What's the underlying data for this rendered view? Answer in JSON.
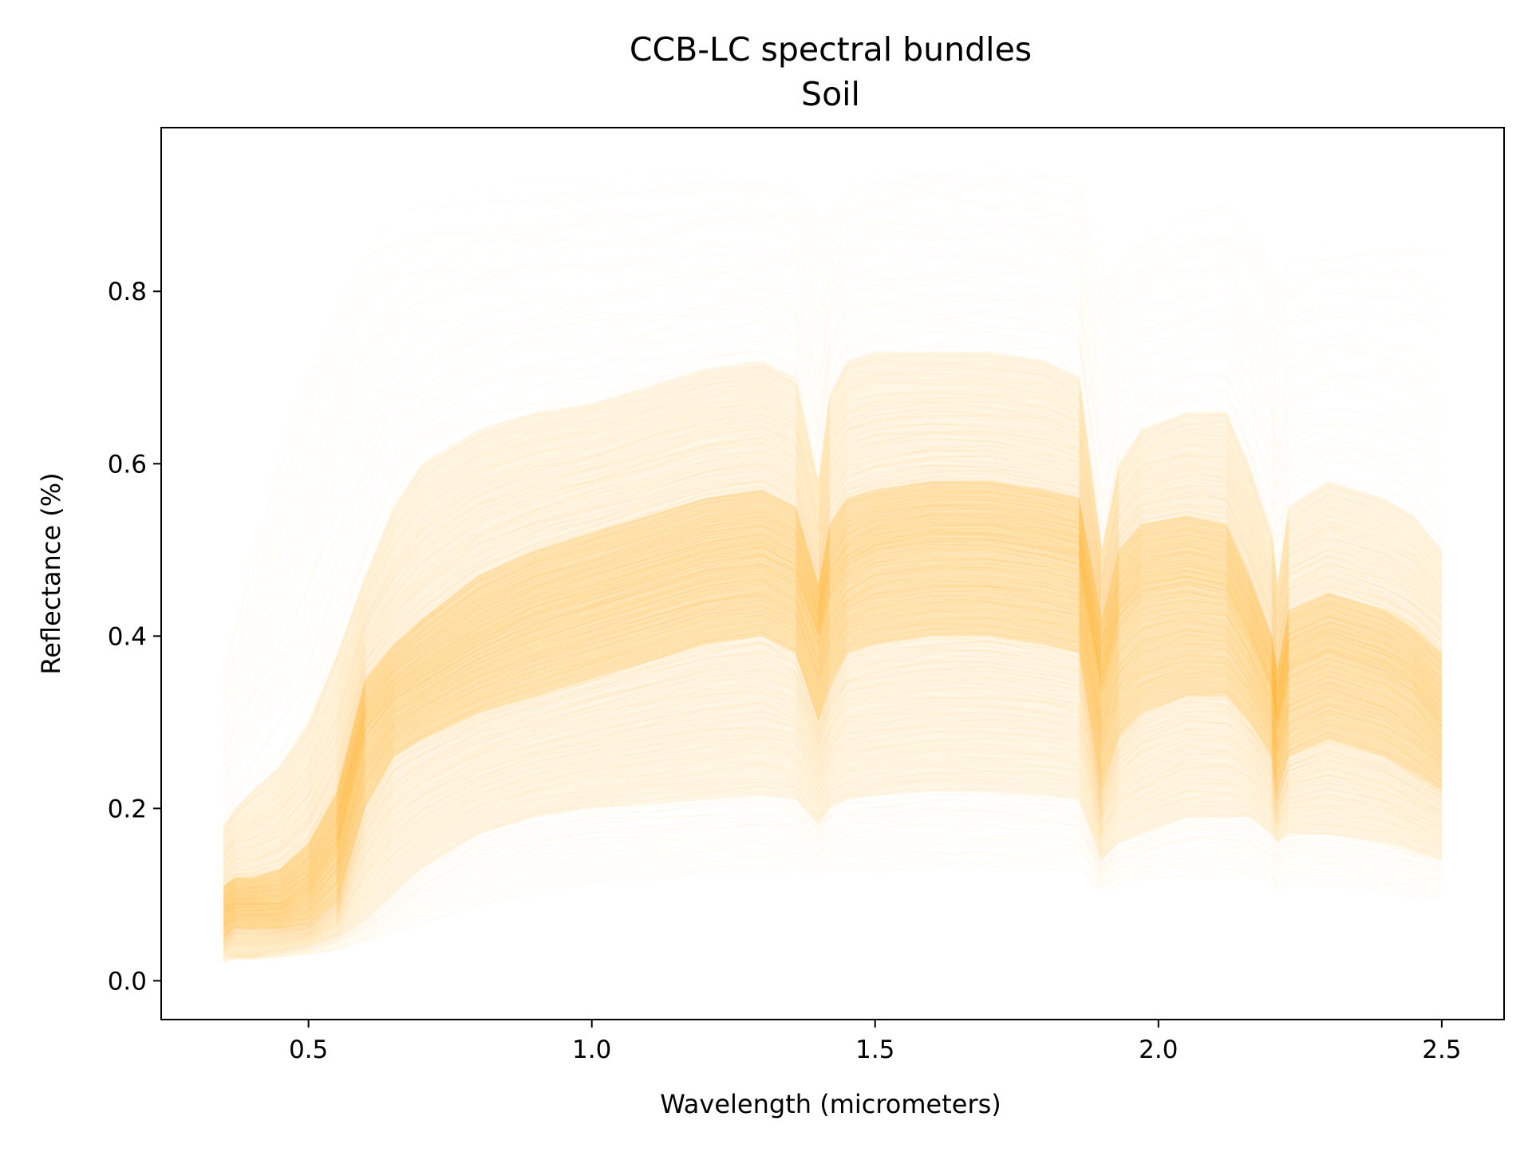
{
  "chart_data": {
    "type": "line",
    "title": "CCB-LC spectral bundles",
    "subtitle": "Soil",
    "xlabel": "Wavelength (micrometers)",
    "ylabel": "Reflectance (%)",
    "xlim": [
      0.24,
      2.61
    ],
    "ylim": [
      -0.045,
      0.99
    ],
    "xticks": [
      {
        "value": 0.5,
        "label": "0.5"
      },
      {
        "value": 1.0,
        "label": "1.0"
      },
      {
        "value": 1.5,
        "label": "1.5"
      },
      {
        "value": 2.0,
        "label": "2.0"
      },
      {
        "value": 2.5,
        "label": "2.5"
      }
    ],
    "yticks": [
      {
        "value": 0.0,
        "label": "0.0"
      },
      {
        "value": 0.2,
        "label": "0.2"
      },
      {
        "value": 0.4,
        "label": "0.4"
      },
      {
        "value": 0.6,
        "label": "0.6"
      },
      {
        "value": 0.8,
        "label": "0.8"
      }
    ],
    "grid": false,
    "legend": "none",
    "series_color": "#ffa500",
    "x": [
      0.35,
      0.37,
      0.4,
      0.45,
      0.5,
      0.55,
      0.6,
      0.65,
      0.7,
      0.8,
      0.9,
      1.0,
      1.1,
      1.2,
      1.3,
      1.36,
      1.4,
      1.42,
      1.45,
      1.5,
      1.6,
      1.7,
      1.8,
      1.86,
      1.9,
      1.93,
      1.97,
      2.05,
      2.12,
      2.16,
      2.2,
      2.21,
      2.23,
      2.3,
      2.4,
      2.45,
      2.5
    ],
    "bundle_bands": {
      "min": [
        0.02,
        0.025,
        0.025,
        0.027,
        0.03,
        0.035,
        0.045,
        0.055,
        0.065,
        0.085,
        0.1,
        0.11,
        0.115,
        0.12,
        0.125,
        0.125,
        0.12,
        0.12,
        0.125,
        0.128,
        0.13,
        0.13,
        0.13,
        0.128,
        0.1,
        0.11,
        0.115,
        0.12,
        0.12,
        0.12,
        0.11,
        0.1,
        0.11,
        0.11,
        0.1,
        0.095,
        0.095
      ],
      "p10": [
        0.03,
        0.03,
        0.03,
        0.035,
        0.04,
        0.05,
        0.07,
        0.1,
        0.13,
        0.17,
        0.19,
        0.2,
        0.205,
        0.21,
        0.215,
        0.21,
        0.18,
        0.2,
        0.21,
        0.215,
        0.22,
        0.22,
        0.215,
        0.21,
        0.14,
        0.16,
        0.17,
        0.19,
        0.19,
        0.19,
        0.17,
        0.16,
        0.17,
        0.17,
        0.16,
        0.15,
        0.14
      ],
      "p30": [
        0.05,
        0.06,
        0.06,
        0.06,
        0.065,
        0.09,
        0.2,
        0.26,
        0.28,
        0.31,
        0.33,
        0.35,
        0.37,
        0.39,
        0.4,
        0.38,
        0.3,
        0.34,
        0.38,
        0.39,
        0.4,
        0.4,
        0.39,
        0.38,
        0.22,
        0.28,
        0.31,
        0.33,
        0.33,
        0.3,
        0.26,
        0.22,
        0.26,
        0.28,
        0.26,
        0.24,
        0.22
      ],
      "median": [
        0.08,
        0.09,
        0.09,
        0.09,
        0.11,
        0.16,
        0.29,
        0.33,
        0.35,
        0.39,
        0.42,
        0.44,
        0.46,
        0.48,
        0.49,
        0.47,
        0.4,
        0.45,
        0.48,
        0.5,
        0.51,
        0.51,
        0.5,
        0.49,
        0.34,
        0.42,
        0.45,
        0.46,
        0.45,
        0.4,
        0.34,
        0.3,
        0.36,
        0.38,
        0.36,
        0.34,
        0.3
      ],
      "p70": [
        0.11,
        0.12,
        0.12,
        0.13,
        0.16,
        0.22,
        0.35,
        0.39,
        0.42,
        0.47,
        0.5,
        0.52,
        0.54,
        0.56,
        0.57,
        0.55,
        0.46,
        0.53,
        0.56,
        0.57,
        0.58,
        0.58,
        0.57,
        0.56,
        0.42,
        0.5,
        0.53,
        0.54,
        0.53,
        0.47,
        0.4,
        0.36,
        0.43,
        0.45,
        0.43,
        0.41,
        0.38
      ],
      "p90": [
        0.18,
        0.2,
        0.22,
        0.25,
        0.3,
        0.38,
        0.47,
        0.55,
        0.6,
        0.64,
        0.66,
        0.67,
        0.69,
        0.71,
        0.72,
        0.7,
        0.58,
        0.68,
        0.72,
        0.73,
        0.73,
        0.73,
        0.72,
        0.7,
        0.5,
        0.6,
        0.64,
        0.66,
        0.66,
        0.6,
        0.52,
        0.46,
        0.55,
        0.58,
        0.56,
        0.54,
        0.5
      ],
      "max": [
        0.36,
        0.42,
        0.5,
        0.62,
        0.72,
        0.8,
        0.86,
        0.89,
        0.9,
        0.92,
        0.93,
        0.935,
        0.94,
        0.94,
        0.94,
        0.93,
        0.88,
        0.9,
        0.93,
        0.94,
        0.945,
        0.945,
        0.94,
        0.93,
        0.82,
        0.85,
        0.87,
        0.89,
        0.9,
        0.88,
        0.84,
        0.8,
        0.84,
        0.86,
        0.86,
        0.86,
        0.85
      ]
    }
  }
}
